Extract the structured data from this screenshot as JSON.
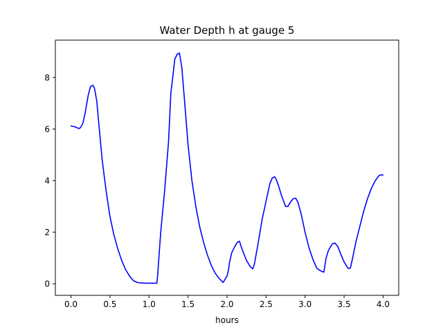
{
  "chart_data": {
    "type": "line",
    "title": "Water Depth h at gauge 5",
    "xlabel": "hours",
    "ylabel": "",
    "xlim": [
      -0.2,
      4.2
    ],
    "ylim": [
      -0.45,
      9.45
    ],
    "grid": false,
    "legend": "none",
    "x_ticks": [
      {
        "value": 0.0,
        "label": "0.0"
      },
      {
        "value": 0.5,
        "label": "0.5"
      },
      {
        "value": 1.0,
        "label": "1.0"
      },
      {
        "value": 1.5,
        "label": "1.5"
      },
      {
        "value": 2.0,
        "label": "2.0"
      },
      {
        "value": 2.5,
        "label": "2.5"
      },
      {
        "value": 3.0,
        "label": "3.0"
      },
      {
        "value": 3.5,
        "label": "3.5"
      },
      {
        "value": 4.0,
        "label": "4.0"
      }
    ],
    "y_ticks": [
      {
        "value": 0,
        "label": "0"
      },
      {
        "value": 2,
        "label": "2"
      },
      {
        "value": 4,
        "label": "4"
      },
      {
        "value": 6,
        "label": "6"
      },
      {
        "value": 8,
        "label": "8"
      }
    ],
    "series": [
      {
        "color": "#0000ff",
        "x": [
          0.0,
          0.04,
          0.08,
          0.1,
          0.12,
          0.15,
          0.18,
          0.22,
          0.25,
          0.28,
          0.3,
          0.33,
          0.36,
          0.4,
          0.45,
          0.5,
          0.55,
          0.6,
          0.65,
          0.7,
          0.75,
          0.8,
          0.85,
          0.9,
          0.95,
          1.0,
          1.05,
          1.1,
          1.11,
          1.15,
          1.2,
          1.25,
          1.28,
          1.3,
          1.33,
          1.36,
          1.39,
          1.42,
          1.45,
          1.5,
          1.55,
          1.6,
          1.65,
          1.7,
          1.75,
          1.8,
          1.85,
          1.9,
          1.95,
          2.0,
          2.02,
          2.03,
          2.06,
          2.1,
          2.13,
          2.16,
          2.18,
          2.21,
          2.25,
          2.3,
          2.33,
          2.35,
          2.4,
          2.45,
          2.5,
          2.55,
          2.58,
          2.61,
          2.63,
          2.66,
          2.7,
          2.75,
          2.78,
          2.82,
          2.85,
          2.88,
          2.91,
          2.95,
          3.0,
          3.05,
          3.1,
          3.15,
          3.2,
          3.24,
          3.27,
          3.3,
          3.35,
          3.38,
          3.42,
          3.45,
          3.5,
          3.55,
          3.58,
          3.61,
          3.65,
          3.7,
          3.75,
          3.8,
          3.85,
          3.9,
          3.95,
          3.97,
          3.99,
          4.0
        ],
        "values": [
          6.12,
          6.1,
          6.05,
          6.02,
          6.05,
          6.2,
          6.6,
          7.3,
          7.65,
          7.7,
          7.6,
          7.1,
          6.1,
          4.8,
          3.6,
          2.6,
          1.9,
          1.35,
          0.9,
          0.55,
          0.3,
          0.12,
          0.05,
          0.03,
          0.02,
          0.02,
          0.02,
          0.02,
          0.3,
          2.0,
          3.6,
          5.5,
          7.4,
          7.9,
          8.7,
          8.9,
          8.95,
          8.4,
          7.3,
          5.4,
          4.0,
          3.0,
          2.2,
          1.6,
          1.1,
          0.7,
          0.4,
          0.2,
          0.05,
          0.3,
          0.55,
          0.8,
          1.2,
          1.45,
          1.6,
          1.65,
          1.45,
          1.2,
          0.9,
          0.65,
          0.58,
          0.75,
          1.6,
          2.5,
          3.2,
          3.9,
          4.1,
          4.15,
          4.05,
          3.8,
          3.4,
          3.0,
          3.0,
          3.2,
          3.3,
          3.32,
          3.15,
          2.7,
          2.0,
          1.4,
          0.95,
          0.6,
          0.5,
          0.45,
          1.0,
          1.3,
          1.55,
          1.58,
          1.45,
          1.2,
          0.85,
          0.6,
          0.6,
          1.0,
          1.6,
          2.2,
          2.8,
          3.3,
          3.7,
          4.0,
          4.2,
          4.22,
          4.22,
          4.22
        ]
      }
    ]
  }
}
